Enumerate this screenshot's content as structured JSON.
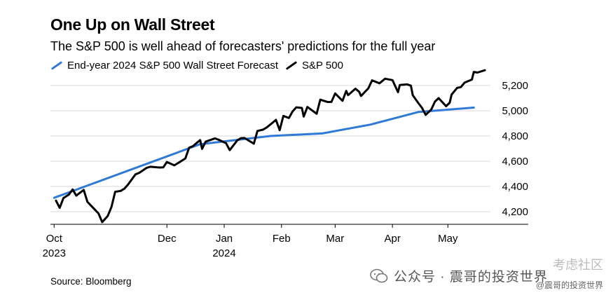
{
  "header": {
    "title": "One Up on Wall Street",
    "subtitle": "The S&P 500 is well ahead of forecasters' predictions for the full year"
  },
  "colors": {
    "forecast": "#2f7ad6",
    "spx": "#000000",
    "grid": "#d9d9d9"
  },
  "footer": {
    "source": "Source: Bloomberg"
  },
  "watermark": {
    "text": "公众号 · 震哥的投资世界",
    "sub": "@震哥的投资世界",
    "corner": "考虑社区"
  },
  "chart_data": {
    "type": "line",
    "title": "One Up on Wall Street",
    "subtitle": "The S&P 500 is well ahead of forecasters' predictions for the full year",
    "xlabel": "",
    "ylabel": "",
    "x_axis": "date",
    "xlim": [
      "2023-09-29",
      "2024-05-24"
    ],
    "ylim": [
      4100,
      5300
    ],
    "yticks": [
      4200,
      4400,
      4600,
      4800,
      5000,
      5200
    ],
    "ytick_labels": [
      "4,200",
      "4,400",
      "4,600",
      "4,800",
      "5,000",
      "5,200"
    ],
    "xticks": [
      {
        "date": "2023-10-01",
        "label": "Oct",
        "sublabel": "2023"
      },
      {
        "date": "2023-12-01",
        "label": "Dec",
        "sublabel": ""
      },
      {
        "date": "2024-01-01",
        "label": "Jan",
        "sublabel": "2024"
      },
      {
        "date": "2024-02-01",
        "label": "Feb",
        "sublabel": ""
      },
      {
        "date": "2024-03-01",
        "label": "Mar",
        "sublabel": ""
      },
      {
        "date": "2024-04-01",
        "label": "Apr",
        "sublabel": ""
      },
      {
        "date": "2024-05-01",
        "label": "May",
        "sublabel": ""
      }
    ],
    "grid": true,
    "legend": "top-left",
    "series": [
      {
        "name": "End-year 2024 S&P 500 Wall Street Forecast",
        "color": "#2f7ad6",
        "points": [
          [
            "2023-10-01",
            4310
          ],
          [
            "2023-12-19",
            4735
          ],
          [
            "2024-01-26",
            4800
          ],
          [
            "2024-02-23",
            4820
          ],
          [
            "2024-03-20",
            4890
          ],
          [
            "2024-04-15",
            4990
          ],
          [
            "2024-05-15",
            5025
          ]
        ]
      },
      {
        "name": "S&P 500",
        "color": "#000000",
        "points": [
          [
            "2023-10-02",
            4288
          ],
          [
            "2023-10-04",
            4230
          ],
          [
            "2023-10-06",
            4308
          ],
          [
            "2023-10-09",
            4336
          ],
          [
            "2023-10-11",
            4376
          ],
          [
            "2023-10-13",
            4327
          ],
          [
            "2023-10-17",
            4373
          ],
          [
            "2023-10-19",
            4278
          ],
          [
            "2023-10-23",
            4217
          ],
          [
            "2023-10-25",
            4186
          ],
          [
            "2023-10-27",
            4117
          ],
          [
            "2023-10-30",
            4166
          ],
          [
            "2023-11-01",
            4237
          ],
          [
            "2023-11-03",
            4358
          ],
          [
            "2023-11-06",
            4365
          ],
          [
            "2023-11-08",
            4382
          ],
          [
            "2023-11-10",
            4415
          ],
          [
            "2023-11-14",
            4496
          ],
          [
            "2023-11-16",
            4508
          ],
          [
            "2023-11-20",
            4547
          ],
          [
            "2023-11-22",
            4556
          ],
          [
            "2023-11-27",
            4550
          ],
          [
            "2023-11-29",
            4551
          ],
          [
            "2023-12-01",
            4594
          ],
          [
            "2023-12-05",
            4567
          ],
          [
            "2023-12-07",
            4585
          ],
          [
            "2023-12-11",
            4622
          ],
          [
            "2023-12-13",
            4707
          ],
          [
            "2023-12-15",
            4719
          ],
          [
            "2023-12-19",
            4768
          ],
          [
            "2023-12-20",
            4698
          ],
          [
            "2023-12-22",
            4755
          ],
          [
            "2023-12-27",
            4781
          ],
          [
            "2023-12-29",
            4770
          ],
          [
            "2024-01-02",
            4743
          ],
          [
            "2024-01-04",
            4688
          ],
          [
            "2024-01-08",
            4764
          ],
          [
            "2024-01-10",
            4783
          ],
          [
            "2024-01-12",
            4784
          ],
          [
            "2024-01-17",
            4739
          ],
          [
            "2024-01-19",
            4840
          ],
          [
            "2024-01-22",
            4850
          ],
          [
            "2024-01-24",
            4868
          ],
          [
            "2024-01-26",
            4891
          ],
          [
            "2024-01-29",
            4928
          ],
          [
            "2024-01-31",
            4846
          ],
          [
            "2024-02-02",
            4959
          ],
          [
            "2024-02-05",
            4943
          ],
          [
            "2024-02-07",
            4995
          ],
          [
            "2024-02-09",
            5027
          ],
          [
            "2024-02-12",
            5022
          ],
          [
            "2024-02-13",
            4954
          ],
          [
            "2024-02-15",
            5030
          ],
          [
            "2024-02-20",
            4976
          ],
          [
            "2024-02-22",
            5088
          ],
          [
            "2024-02-26",
            5069
          ],
          [
            "2024-02-28",
            5070
          ],
          [
            "2024-03-01",
            5137
          ],
          [
            "2024-03-05",
            5079
          ],
          [
            "2024-03-07",
            5157
          ],
          [
            "2024-03-08",
            5124
          ],
          [
            "2024-03-12",
            5175
          ],
          [
            "2024-03-14",
            5150
          ],
          [
            "2024-03-15",
            5117
          ],
          [
            "2024-03-19",
            5178
          ],
          [
            "2024-03-21",
            5241
          ],
          [
            "2024-03-25",
            5218
          ],
          [
            "2024-03-28",
            5254
          ],
          [
            "2024-04-01",
            5243
          ],
          [
            "2024-04-04",
            5147
          ],
          [
            "2024-04-05",
            5204
          ],
          [
            "2024-04-09",
            5209
          ],
          [
            "2024-04-11",
            5199
          ],
          [
            "2024-04-12",
            5123
          ],
          [
            "2024-04-15",
            5061
          ],
          [
            "2024-04-17",
            5022
          ],
          [
            "2024-04-19",
            4967
          ],
          [
            "2024-04-22",
            5010
          ],
          [
            "2024-04-24",
            5072
          ],
          [
            "2024-04-26",
            5100
          ],
          [
            "2024-04-30",
            5036
          ],
          [
            "2024-05-02",
            5064
          ],
          [
            "2024-05-03",
            5128
          ],
          [
            "2024-05-06",
            5181
          ],
          [
            "2024-05-08",
            5187
          ],
          [
            "2024-05-10",
            5223
          ],
          [
            "2024-05-14",
            5247
          ],
          [
            "2024-05-15",
            5308
          ],
          [
            "2024-05-17",
            5303
          ],
          [
            "2024-05-21",
            5321
          ]
        ]
      }
    ]
  }
}
